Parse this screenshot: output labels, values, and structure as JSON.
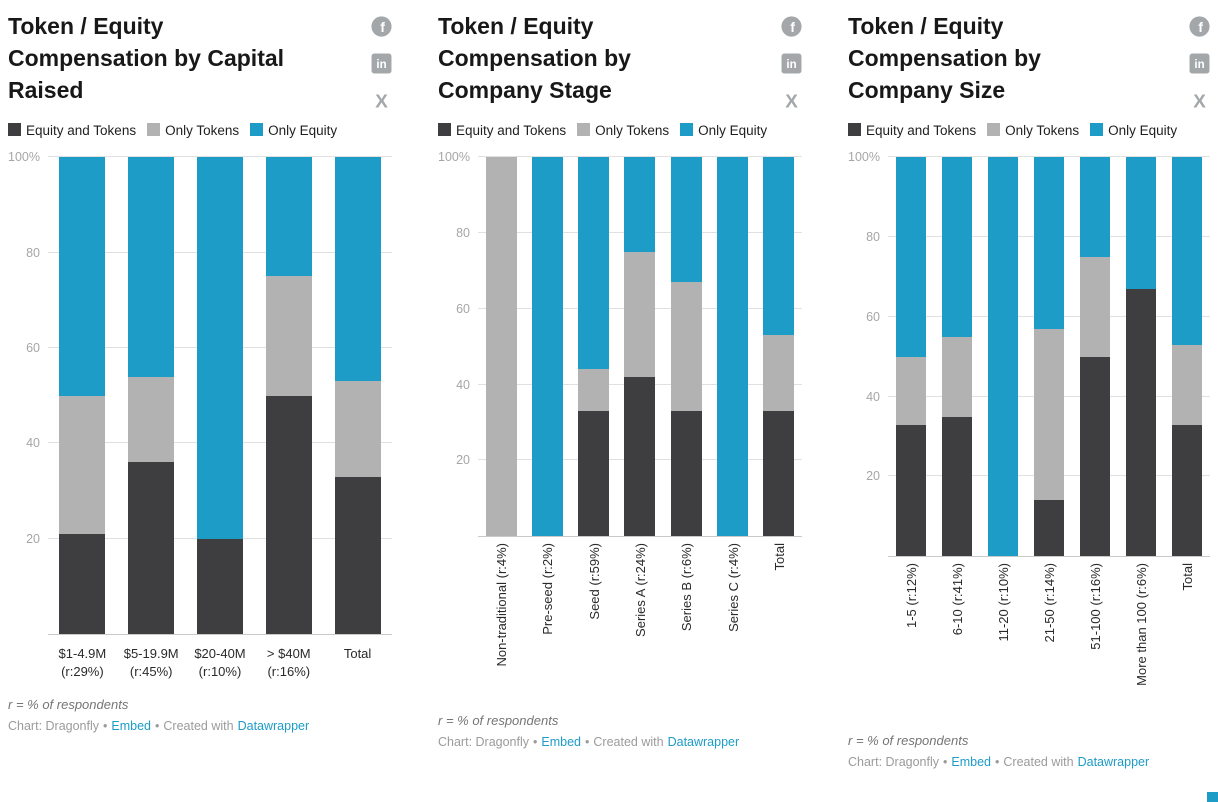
{
  "legend": {
    "items": [
      {
        "name": "equity-and-tokens",
        "label": "Equity and Tokens",
        "color": "#3e3e40"
      },
      {
        "name": "only-tokens",
        "label": "Only Tokens",
        "color": "#b2b2b2"
      },
      {
        "name": "only-equity",
        "label": "Only Equity",
        "color": "#1d9cc8"
      }
    ]
  },
  "icons": {
    "facebook_glyph": "f",
    "linkedin_glyph": "in",
    "x_glyph": "X"
  },
  "footer": {
    "note": "r = % of respondents",
    "credit_prefix": "Chart: Dragonfly",
    "sep": "•",
    "embed_label": "Embed",
    "created_with": "Created with",
    "tool_label": "Datawrapper"
  },
  "colors": {
    "accent": "#1d9cc8",
    "grid": "#e0e0e0",
    "axis_text": "#a6a6a6"
  },
  "chart_data": [
    {
      "type": "bar",
      "stacked": true,
      "title": "Token / Equity Compensation by Capital Raised",
      "categories": [
        "$1-4.9M (r:29%)",
        "$5-19.9M (r:45%)",
        "$20-40M (r:10%)",
        "> $40M (r:16%)",
        "Total"
      ],
      "series": [
        {
          "name": "Equity and Tokens",
          "values": [
            21,
            36,
            20,
            50,
            33
          ]
        },
        {
          "name": "Only Tokens",
          "values": [
            29,
            18,
            0,
            25,
            20
          ]
        },
        {
          "name": "Only Equity",
          "values": [
            50,
            46,
            80,
            25,
            47
          ]
        }
      ],
      "unit": "%",
      "ylim": [
        0,
        100
      ],
      "y_ticks": [
        {
          "value": 100,
          "label": "100%"
        },
        {
          "value": 80,
          "label": "80"
        },
        {
          "value": 60,
          "label": "60"
        },
        {
          "value": 40,
          "label": "40"
        },
        {
          "value": 20,
          "label": "20"
        }
      ]
    },
    {
      "type": "bar",
      "stacked": true,
      "title": "Token / Equity Compensation by Company Stage",
      "categories": [
        "Non-traditional (r:4%)",
        "Pre-seed (r:2%)",
        "Seed (r:59%)",
        "Series A (r:24%)",
        "Series B (r:6%)",
        "Series C (r:4%)",
        "Total"
      ],
      "series": [
        {
          "name": "Equity and Tokens",
          "values": [
            0,
            0,
            33,
            42,
            33,
            0,
            33
          ]
        },
        {
          "name": "Only Tokens",
          "values": [
            100,
            0,
            11,
            33,
            34,
            0,
            20
          ]
        },
        {
          "name": "Only Equity",
          "values": [
            0,
            100,
            56,
            25,
            33,
            100,
            47
          ]
        }
      ],
      "unit": "%",
      "ylim": [
        0,
        100
      ],
      "y_ticks": [
        {
          "value": 100,
          "label": "100%"
        },
        {
          "value": 80,
          "label": "80"
        },
        {
          "value": 60,
          "label": "60"
        },
        {
          "value": 40,
          "label": "40"
        },
        {
          "value": 20,
          "label": "20"
        }
      ]
    },
    {
      "type": "bar",
      "stacked": true,
      "title": "Token / Equity Compensation by Company Size",
      "categories": [
        "1-5 (r:12%)",
        "6-10 (r:41%)",
        "11-20 (r:10%)",
        "21-50 (r:14%)",
        "51-100 (r:16%)",
        "More than 100 (r:6%)",
        "Total"
      ],
      "series": [
        {
          "name": "Equity and Tokens",
          "values": [
            33,
            35,
            0,
            14,
            50,
            67,
            33
          ]
        },
        {
          "name": "Only Tokens",
          "values": [
            17,
            20,
            0,
            43,
            25,
            0,
            20
          ]
        },
        {
          "name": "Only Equity",
          "values": [
            50,
            45,
            100,
            43,
            25,
            33,
            47
          ]
        }
      ],
      "unit": "%",
      "ylim": [
        0,
        100
      ],
      "y_ticks": [
        {
          "value": 100,
          "label": "100%"
        },
        {
          "value": 80,
          "label": "80"
        },
        {
          "value": 60,
          "label": "60"
        },
        {
          "value": 40,
          "label": "40"
        },
        {
          "value": 20,
          "label": "20"
        }
      ]
    }
  ]
}
